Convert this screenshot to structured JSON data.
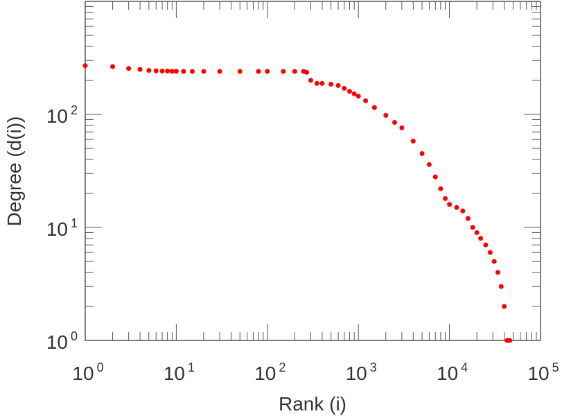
{
  "chart_data": {
    "type": "scatter",
    "title": "",
    "xlabel": "Rank (i)",
    "ylabel": "Degree (d(i))",
    "xscale": "log",
    "yscale": "log",
    "xlim": [
      1,
      100000
    ],
    "ylim": [
      1,
      1000
    ],
    "grid": false,
    "legend": "none",
    "marker_color": "#ff0000",
    "x_ticks": [
      {
        "base": "10",
        "exp": "0"
      },
      {
        "base": "10",
        "exp": "1"
      },
      {
        "base": "10",
        "exp": "2"
      },
      {
        "base": "10",
        "exp": "3"
      },
      {
        "base": "10",
        "exp": "4"
      },
      {
        "base": "10",
        "exp": "5"
      }
    ],
    "y_ticks": [
      {
        "base": "10",
        "exp": "0"
      },
      {
        "base": "10",
        "exp": "1"
      },
      {
        "base": "10",
        "exp": "2"
      }
    ],
    "x": [
      1,
      2,
      3,
      4,
      5,
      6,
      7,
      8,
      9,
      10,
      12,
      15,
      20,
      30,
      50,
      80,
      100,
      150,
      200,
      250,
      270,
      300,
      350,
      400,
      500,
      600,
      700,
      800,
      900,
      1000,
      1200,
      1500,
      2000,
      2500,
      3000,
      4000,
      5000,
      6000,
      7000,
      8000,
      9000,
      10000,
      12000,
      14000,
      16000,
      18000,
      20000,
      22000,
      25000,
      28000,
      31000,
      34000,
      37000,
      40000,
      43000,
      46000
    ],
    "y": [
      270,
      265,
      255,
      250,
      245,
      243,
      242,
      242,
      241,
      241,
      240,
      240,
      240,
      240,
      240,
      240,
      240,
      240,
      240,
      240,
      236,
      200,
      188,
      188,
      185,
      180,
      170,
      160,
      152,
      145,
      132,
      115,
      98,
      85,
      76,
      58,
      45,
      36,
      28,
      22,
      18,
      16,
      15,
      14,
      12,
      10,
      9,
      8,
      7,
      6,
      5,
      4,
      3,
      2,
      1,
      1
    ]
  }
}
